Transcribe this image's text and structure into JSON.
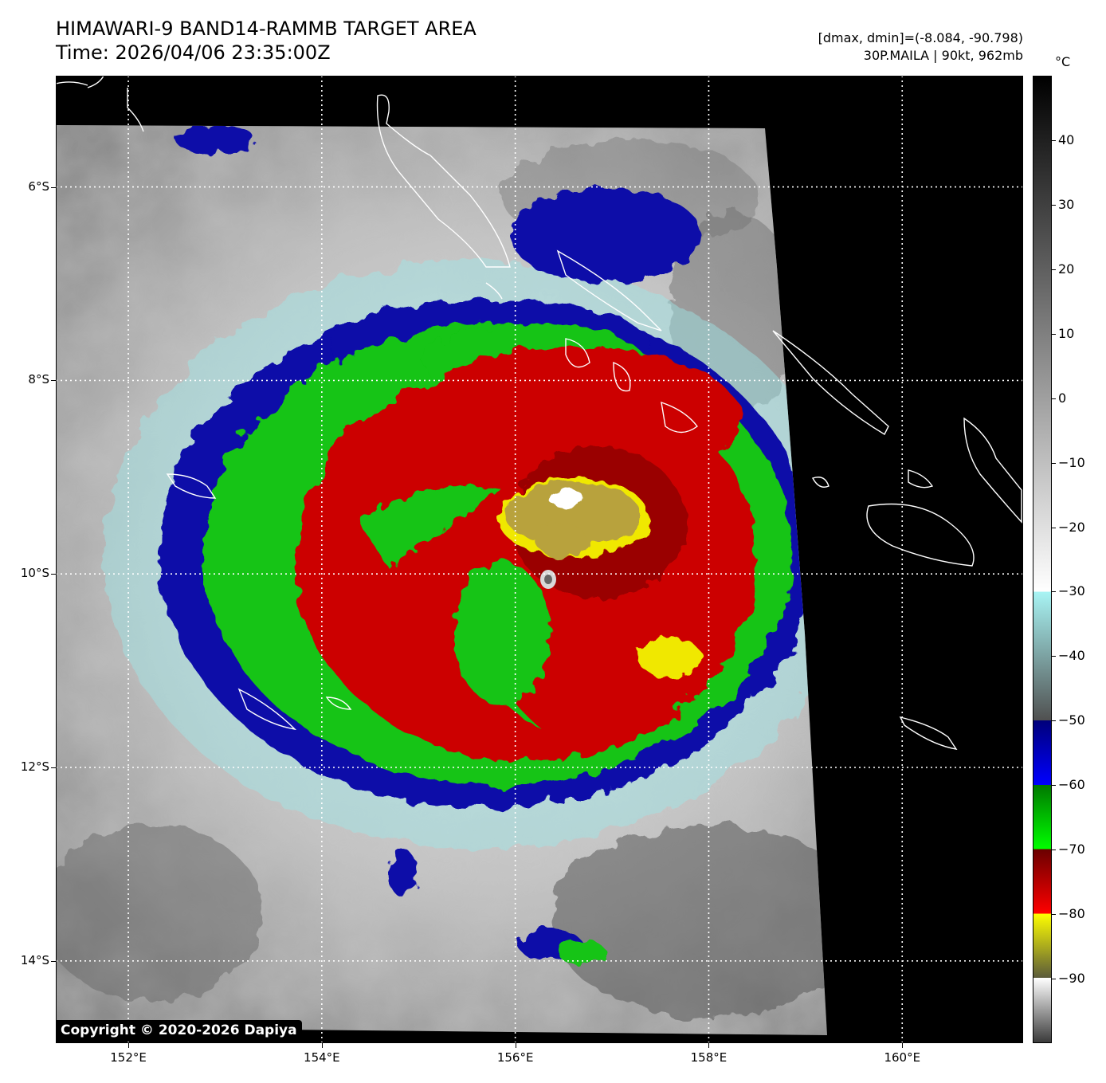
{
  "header": {
    "title": "HIMAWARI-9 BAND14-RAMMB TARGET AREA",
    "time": "Time: 2026/04/06 23:35:00Z",
    "range": "[dmax, dmin]=(-8.084, -90.798)",
    "storm": "30P.MAILA | 90kt, 962mb"
  },
  "map": {
    "lon_range": [
      151.25,
      161.25
    ],
    "lat_range": [
      -14.85,
      -4.85
    ],
    "lon_ticks": [
      {
        "value": 152,
        "label": "152°E"
      },
      {
        "value": 154,
        "label": "154°E"
      },
      {
        "value": 156,
        "label": "156°E"
      },
      {
        "value": 158,
        "label": "158°E"
      },
      {
        "value": 160,
        "label": "160°E"
      }
    ],
    "lat_ticks": [
      {
        "value": -6,
        "label": "6°S"
      },
      {
        "value": -8,
        "label": "8°S"
      },
      {
        "value": -10,
        "label": "10°S"
      },
      {
        "value": -12,
        "label": "12°S"
      },
      {
        "value": -14,
        "label": "14°S"
      }
    ],
    "gridlines": true,
    "storm_center": {
      "lon": 156.35,
      "lat": -10.1
    },
    "colors": {
      "no_data": "#000000",
      "coastline": "#ffffff",
      "grid": "#ffffff"
    }
  },
  "colorbar": {
    "unit": "°C",
    "range": [
      -100,
      50
    ],
    "ticks": [
      {
        "value": 40,
        "label": "40"
      },
      {
        "value": 30,
        "label": "30"
      },
      {
        "value": 20,
        "label": "20"
      },
      {
        "value": 10,
        "label": "10"
      },
      {
        "value": 0,
        "label": "0"
      },
      {
        "value": -10,
        "label": "−10"
      },
      {
        "value": -20,
        "label": "−20"
      },
      {
        "value": -30,
        "label": "−30"
      },
      {
        "value": -40,
        "label": "−40"
      },
      {
        "value": -50,
        "label": "−50"
      },
      {
        "value": -60,
        "label": "−60"
      },
      {
        "value": -70,
        "label": "−70"
      },
      {
        "value": -80,
        "label": "−80"
      },
      {
        "value": -90,
        "label": "−90"
      }
    ]
  },
  "copyright": "Copyright © 2020-2026 Dapiya"
}
